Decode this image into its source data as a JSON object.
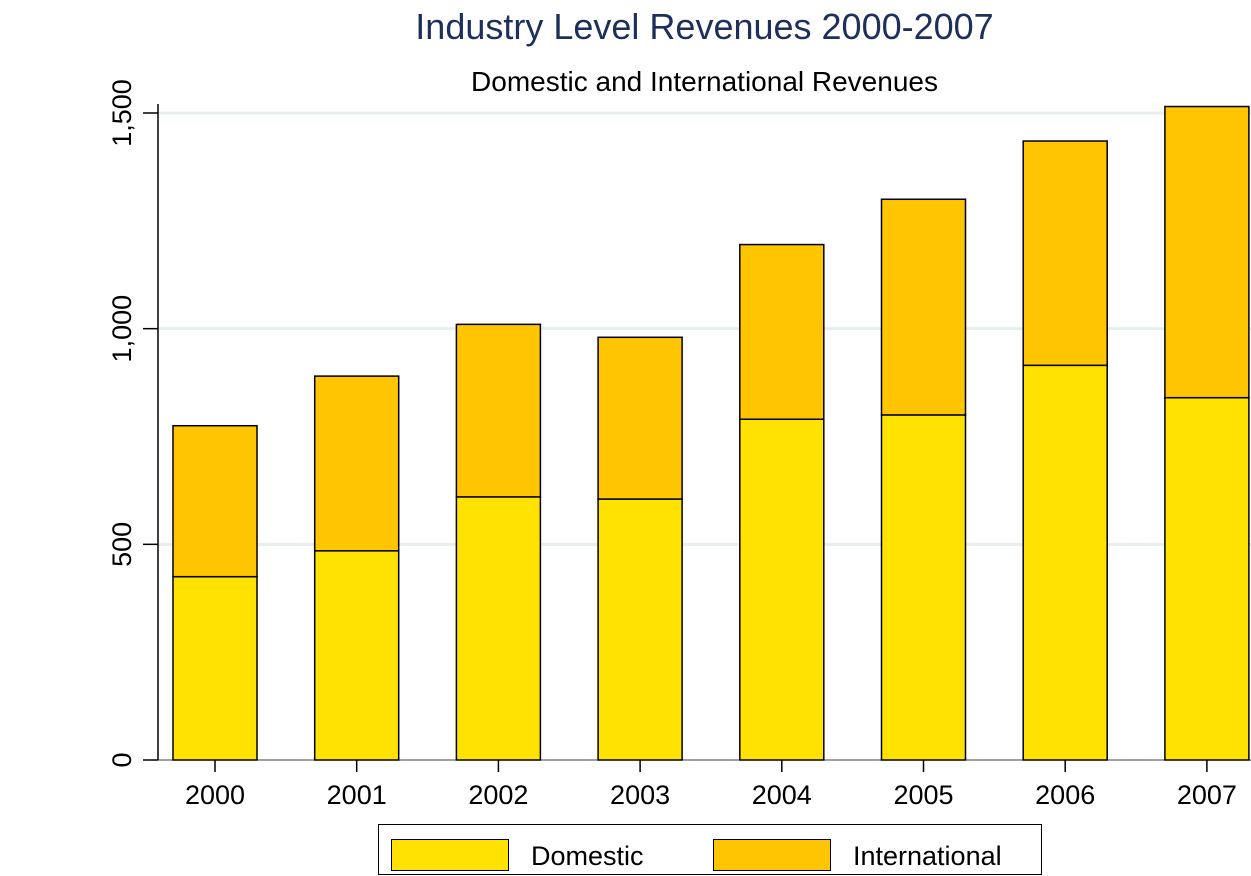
{
  "chart_data": {
    "type": "bar",
    "stacked": true,
    "title": "Industry Level Revenues 2000-2007",
    "subtitle": "Domestic and International Revenues",
    "xlabel": "",
    "ylabel": "",
    "categories": [
      "2000",
      "2001",
      "2002",
      "2003",
      "2004",
      "2005",
      "2006",
      "2007"
    ],
    "series": [
      {
        "name": "Domestic",
        "color": "#FFE200",
        "values": [
          425,
          485,
          610,
          605,
          790,
          800,
          915,
          840
        ]
      },
      {
        "name": "International",
        "color": "#FEC500",
        "values": [
          350,
          405,
          400,
          375,
          405,
          500,
          520,
          675
        ]
      }
    ],
    "ylim": [
      0,
      1500
    ],
    "yticks": [
      0,
      500,
      1000,
      1500
    ],
    "ytick_labels": [
      "0",
      "500",
      "1,000",
      "1,500"
    ],
    "grid": "horizontal",
    "legend_position": "bottom"
  }
}
